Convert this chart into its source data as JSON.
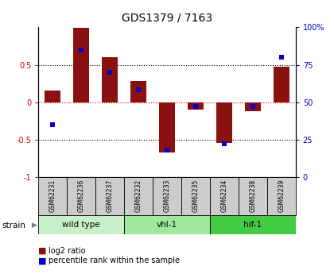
{
  "title": "GDS1379 / 7163",
  "samples": [
    "GSM62231",
    "GSM62236",
    "GSM62237",
    "GSM62232",
    "GSM62233",
    "GSM62235",
    "GSM62234",
    "GSM62238",
    "GSM62239"
  ],
  "log2_ratio": [
    0.15,
    1.0,
    0.6,
    0.28,
    -0.68,
    -0.1,
    -0.55,
    -0.12,
    0.47
  ],
  "percentile": [
    35,
    85,
    70,
    58,
    18,
    47,
    22,
    47,
    80
  ],
  "groups": [
    {
      "label": "wild type",
      "start": 0,
      "end": 3,
      "color": "#c8f0c8"
    },
    {
      "label": "vhl-1",
      "start": 3,
      "end": 6,
      "color": "#a0e8a0"
    },
    {
      "label": "hif-1",
      "start": 6,
      "end": 9,
      "color": "#44cc44"
    }
  ],
  "ylim": [
    -1,
    1
  ],
  "yticks_left": [
    -1,
    -0.5,
    0,
    0.5
  ],
  "yticks_right_vals": [
    -1,
    -0.5,
    0,
    0.5,
    1
  ],
  "yticks_right_labels": [
    "0",
    "25",
    "50",
    "75",
    "100%"
  ],
  "bar_color": "#8B1010",
  "dot_color": "#0000CC",
  "bg_color": "#ffffff",
  "axis_color_left": "#cc0000",
  "axis_color_right": "#0000cc",
  "sample_box_color": "#cccccc",
  "legend_bar_label": "log2 ratio",
  "legend_dot_label": "percentile rank within the sample",
  "strain_label": "strain",
  "bar_width": 0.55
}
